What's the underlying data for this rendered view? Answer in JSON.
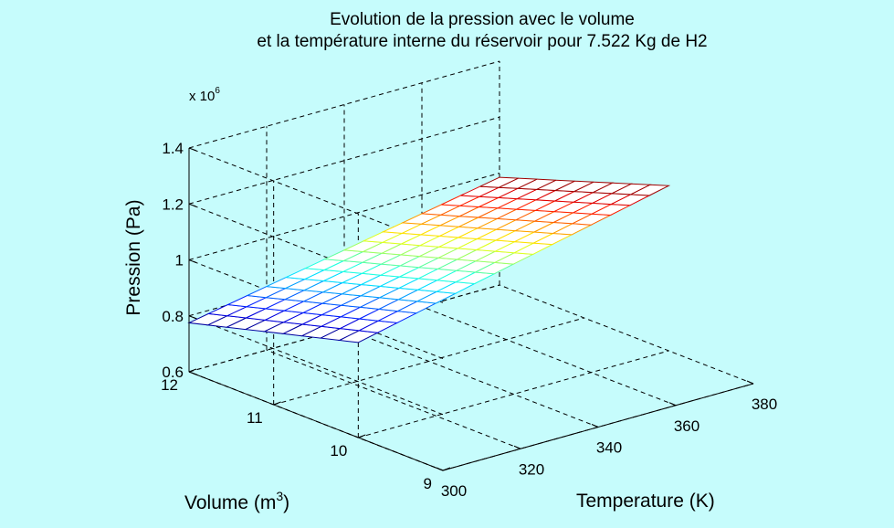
{
  "chart_data": {
    "type": "surface",
    "title_lines": [
      "Evolution de la pression avec le volume",
      "et la température interne du réservoir pour 7.522 Kg de H2"
    ],
    "xlabel": "Temperature (K)",
    "ylabel_base": "Volume (m",
    "ylabel_sup": "3",
    "ylabel_close": ")",
    "zlabel": "Pression (Pa)",
    "z_multiplier_base": "x 10",
    "z_multiplier_exp": "6",
    "x_ticks": [
      300,
      320,
      340,
      360,
      380
    ],
    "y_ticks": [
      9,
      10,
      11,
      12
    ],
    "z_ticks": [
      0.6,
      0.8,
      1,
      1.2,
      1.4
    ],
    "x_tick_labels": [
      "300",
      "320",
      "340",
      "360",
      "380"
    ],
    "y_tick_labels": [
      "9",
      "10",
      "11",
      "12"
    ],
    "z_tick_labels": [
      "0.6",
      "0.8",
      "1",
      "1.2",
      "1.4"
    ],
    "xlim": [
      300,
      380
    ],
    "ylim": [
      9,
      12
    ],
    "zlim": [
      0.6,
      1.4
    ],
    "grid": true,
    "colormap": "jet",
    "surface": {
      "T_range": [
        300,
        380
      ],
      "V_range": [
        10,
        12
      ],
      "T_steps": 16,
      "V_steps": 9,
      "corner_values": {
        "T300_V12": 0.775,
        "T300_V10": 0.94,
        "T380_V12": 0.985,
        "T380_V10": 1.19
      }
    }
  }
}
